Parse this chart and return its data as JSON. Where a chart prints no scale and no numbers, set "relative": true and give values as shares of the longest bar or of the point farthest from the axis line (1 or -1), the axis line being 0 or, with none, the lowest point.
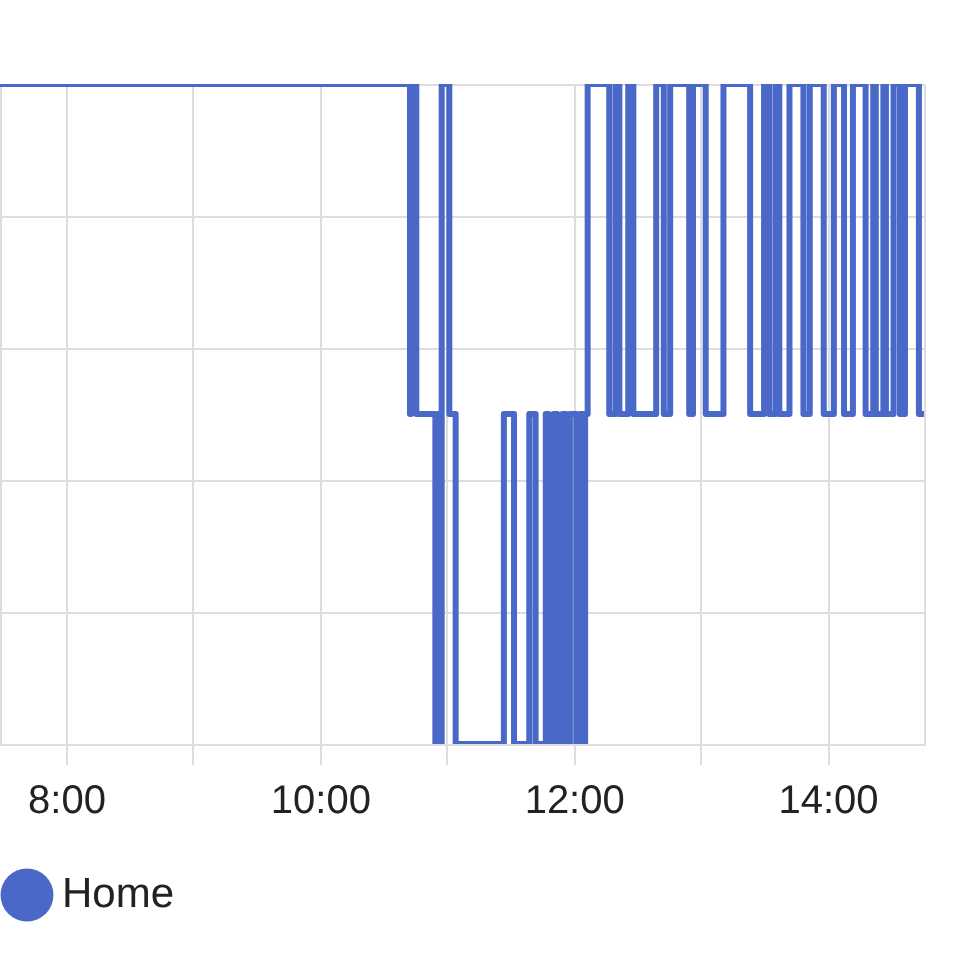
{
  "chart_data": {
    "type": "step",
    "relative": true,
    "grid": true,
    "legend": "bottom left",
    "marker": "none",
    "line_style": "solid",
    "xlim": [
      7.48,
      14.76
    ],
    "xticks": [
      {
        "value": 8,
        "label": "8:00"
      },
      {
        "value": 9,
        "label": null
      },
      {
        "value": 10,
        "label": "10:00"
      },
      {
        "value": 11,
        "label": null
      },
      {
        "value": 12,
        "label": "12:00"
      },
      {
        "value": 13,
        "label": null
      },
      {
        "value": 14,
        "label": "14:00"
      }
    ],
    "series": [
      {
        "name": "Home",
        "color": "#4a68c8",
        "x": [
          7.48,
          10.71,
          10.72,
          10.76,
          10.91,
          10.93,
          10.94,
          10.96,
          11.02,
          11.07,
          11.45,
          11.53,
          11.65,
          11.7,
          11.78,
          11.8,
          11.84,
          11.87,
          11.91,
          11.94,
          11.97,
          12.02,
          12.05,
          12.08,
          12.09,
          12.11,
          12.28,
          12.33,
          12.36,
          12.43,
          12.47,
          12.65,
          12.71,
          12.76,
          12.91,
          12.94,
          13.04,
          13.18,
          13.39,
          13.5,
          13.54,
          13.59,
          13.62,
          13.7,
          13.81,
          13.86,
          13.97,
          14.05,
          14.13,
          14.2,
          14.3,
          14.36,
          14.38,
          14.44,
          14.46,
          14.52,
          14.57,
          14.61,
          14.72,
          14.76
        ],
        "values": [
          1,
          0.5,
          1,
          0.5,
          0,
          0.5,
          0,
          1,
          0.5,
          0,
          0.5,
          0,
          0.5,
          0,
          0.5,
          0,
          0.5,
          0,
          0.5,
          0,
          0.5,
          0,
          0.5,
          0,
          0.5,
          1,
          0.5,
          1,
          0.5,
          1,
          0.5,
          1,
          0.5,
          1,
          0.5,
          1,
          0.5,
          1,
          0.5,
          1,
          0.5,
          1,
          0.5,
          1,
          0.5,
          1,
          0.5,
          1,
          0.5,
          1,
          0.5,
          1,
          0.5,
          1,
          0.5,
          1,
          0.5,
          1,
          0.5,
          0.5
        ]
      }
    ]
  }
}
